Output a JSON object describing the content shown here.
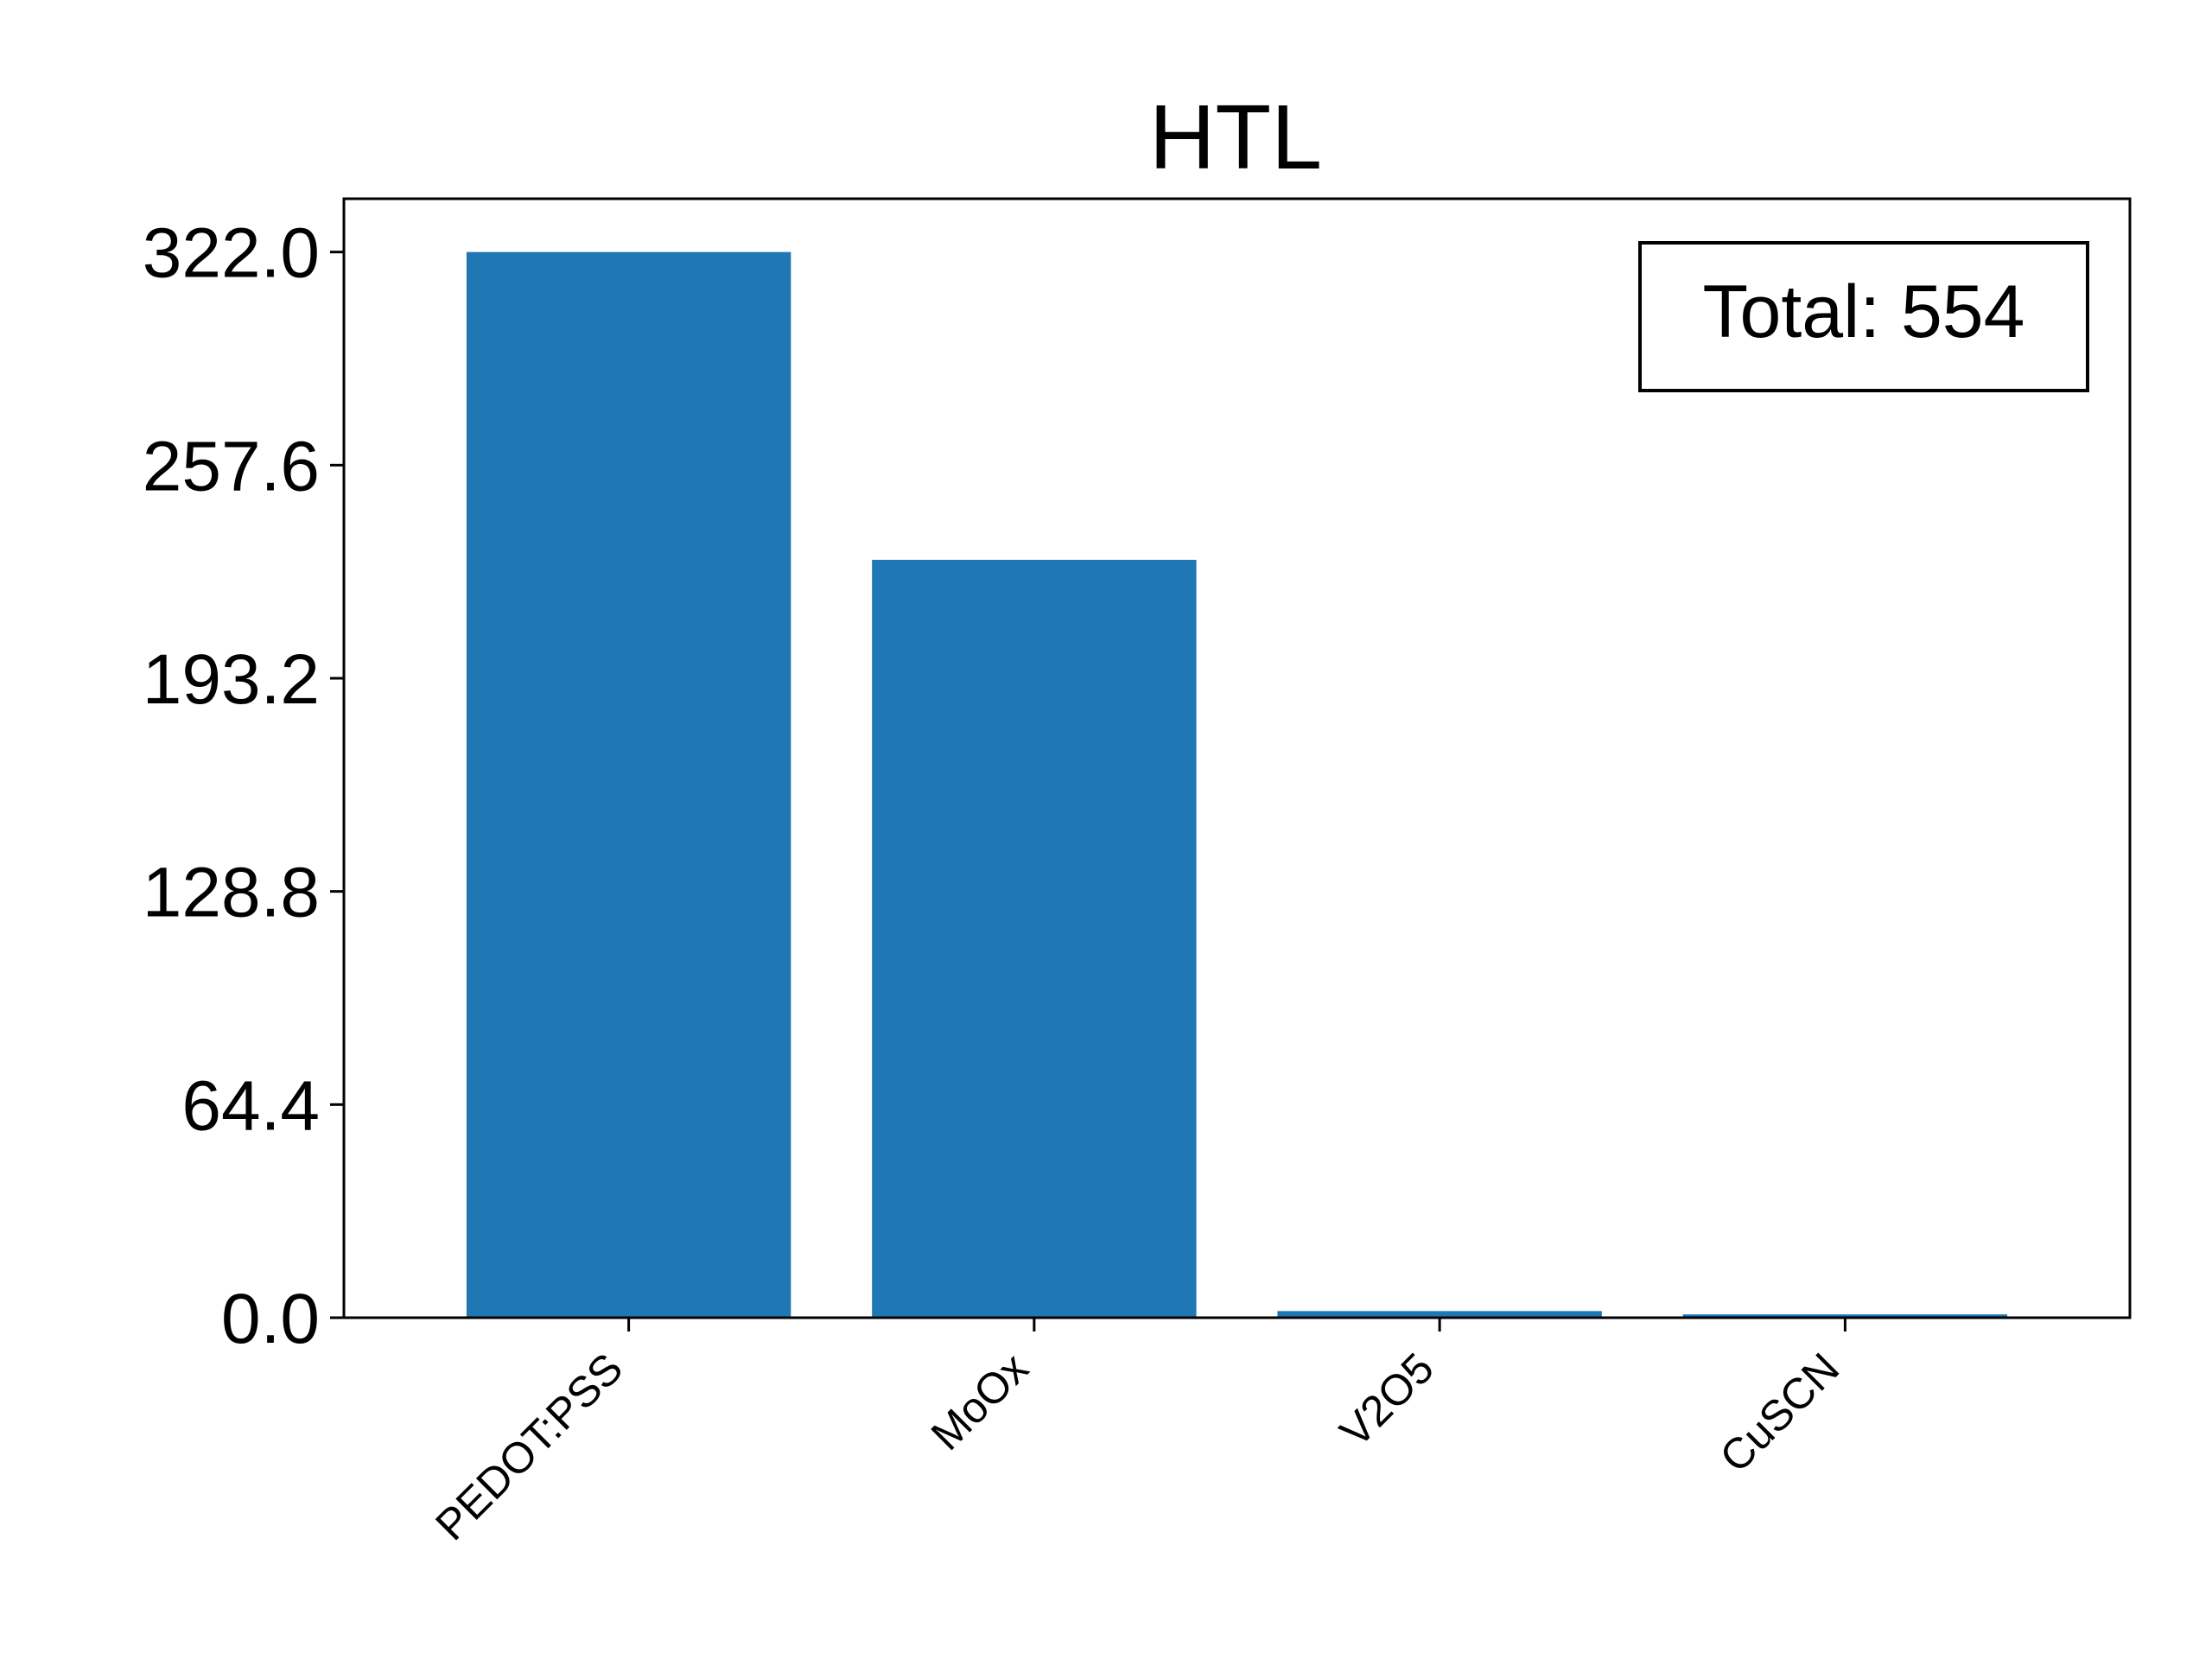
{
  "chart_data": {
    "type": "bar",
    "title": "HTL",
    "xlabel": "",
    "ylabel": "",
    "categories": [
      "PEDOT:PSS",
      "MoOx",
      "V2O5",
      "CuSCN"
    ],
    "values": [
      322,
      229,
      2,
      1
    ],
    "ylim": [
      0,
      338.1
    ],
    "yticks": [
      "0.0",
      "64.4",
      "128.8",
      "193.2",
      "257.6",
      "322.0"
    ],
    "ytick_values": [
      0,
      64.4,
      128.8,
      193.2,
      257.6,
      322.0
    ],
    "grid": false,
    "bar_color": "#1f77b4",
    "annotation": "Total: 554",
    "annotation_position": "top-right"
  }
}
